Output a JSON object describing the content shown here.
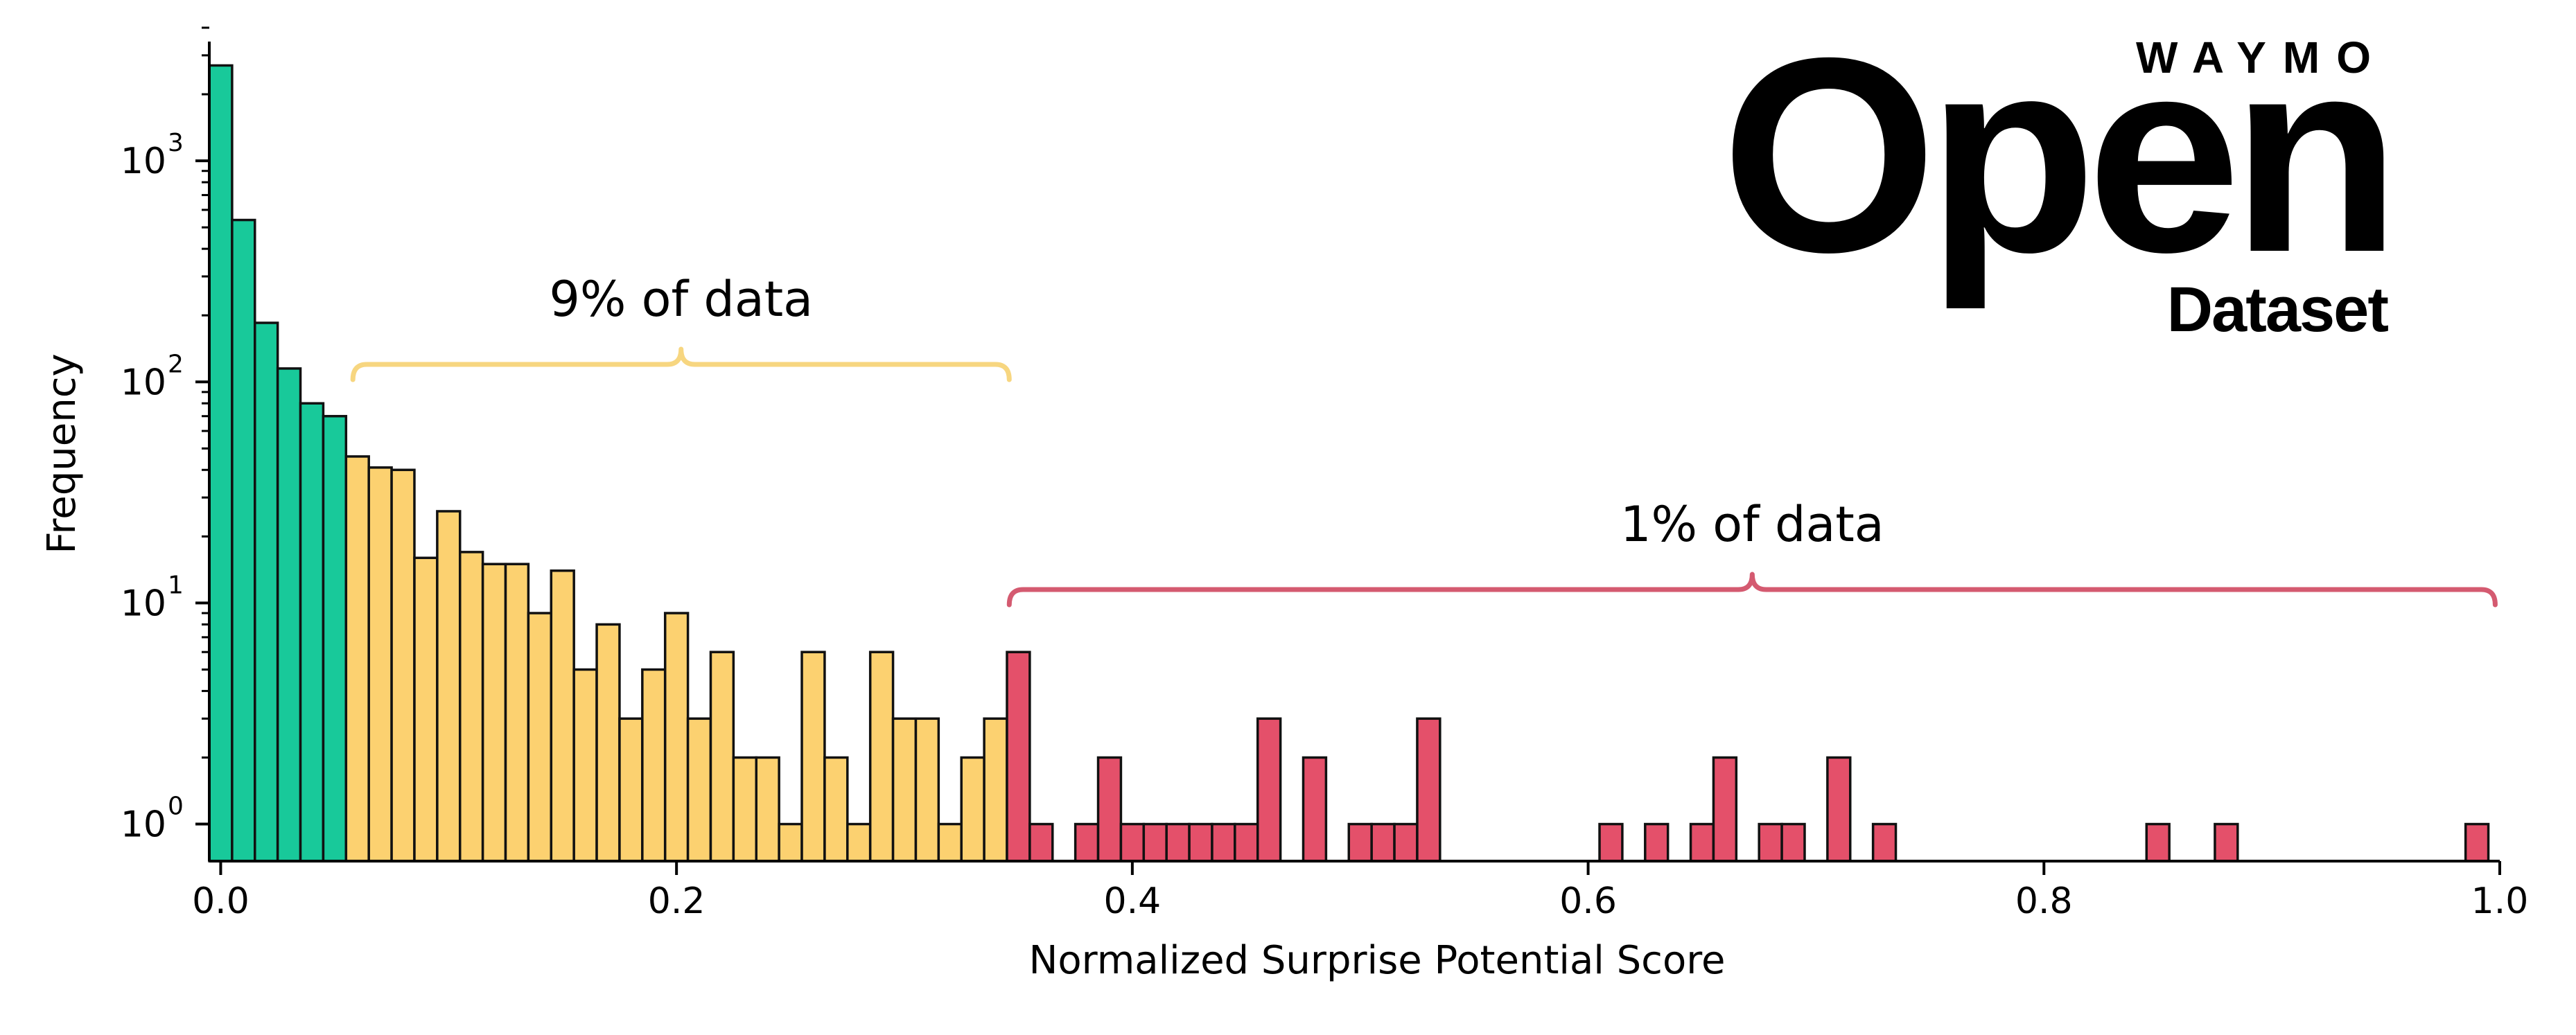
{
  "logo": {
    "wordmark": "WAYMO",
    "main": "Open",
    "sub": "Dataset"
  },
  "colors": {
    "green": "#18c99a",
    "yellow": "#fcd170",
    "red": "#e4506a",
    "bracket_yellow": "#f7d680",
    "bracket_red": "#d45a70",
    "edge": "#111111"
  },
  "annotations": [
    {
      "text": "9% of data",
      "color_key": "bracket_yellow",
      "x_start": 0.058,
      "x_end": 0.346,
      "y": 120
    },
    {
      "text": "1% of data",
      "color_key": "bracket_red",
      "x_start": 0.346,
      "x_end": 0.998,
      "y": 11.5
    }
  ],
  "chart_data": {
    "type": "bar",
    "xlabel": "Normalized Surprise Potential Score",
    "ylabel": "Frequency",
    "xlim": [
      -0.005,
      1.0
    ],
    "ylim": [
      0.68,
      4000
    ],
    "yscale": "log",
    "bin_width": 0.01,
    "xticks": [
      0.0,
      0.2,
      0.4,
      0.6,
      0.8,
      1.0
    ],
    "xtick_labels": [
      "0.0",
      "0.2",
      "0.4",
      "0.6",
      "0.8",
      "1.0"
    ],
    "yticks": [
      {
        "value": 1,
        "base": "10",
        "exp": "0"
      },
      {
        "value": 10,
        "base": "10",
        "exp": "1"
      },
      {
        "value": 100,
        "base": "10",
        "exp": "2"
      },
      {
        "value": 1000,
        "base": "10",
        "exp": "3"
      }
    ],
    "series": [
      {
        "color_key": "green",
        "bins": [
          [
            -0.005,
            2700
          ],
          [
            0.005,
            540
          ],
          [
            0.015,
            185
          ],
          [
            0.025,
            115
          ],
          [
            0.035,
            80
          ],
          [
            0.045,
            70
          ]
        ]
      },
      {
        "color_key": "yellow",
        "bins": [
          [
            0.055,
            46
          ],
          [
            0.065,
            41
          ],
          [
            0.075,
            40
          ],
          [
            0.085,
            16
          ],
          [
            0.095,
            26
          ],
          [
            0.105,
            17
          ],
          [
            0.115,
            15
          ],
          [
            0.125,
            15
          ],
          [
            0.135,
            9
          ],
          [
            0.145,
            14
          ],
          [
            0.155,
            5
          ],
          [
            0.165,
            8
          ],
          [
            0.175,
            3
          ],
          [
            0.185,
            5
          ],
          [
            0.195,
            9
          ],
          [
            0.205,
            3
          ],
          [
            0.215,
            6
          ],
          [
            0.225,
            2
          ],
          [
            0.235,
            2
          ],
          [
            0.245,
            1
          ],
          [
            0.255,
            6
          ],
          [
            0.265,
            2
          ],
          [
            0.275,
            1
          ],
          [
            0.285,
            6
          ],
          [
            0.295,
            3
          ],
          [
            0.305,
            3
          ],
          [
            0.315,
            1
          ],
          [
            0.325,
            2
          ],
          [
            0.335,
            3
          ]
        ]
      },
      {
        "color_key": "red",
        "bins": [
          [
            0.345,
            6
          ],
          [
            0.355,
            1
          ],
          [
            0.375,
            1
          ],
          [
            0.385,
            2
          ],
          [
            0.395,
            1
          ],
          [
            0.405,
            1
          ],
          [
            0.415,
            1
          ],
          [
            0.425,
            1
          ],
          [
            0.435,
            1
          ],
          [
            0.445,
            1
          ],
          [
            0.455,
            3
          ],
          [
            0.475,
            2
          ],
          [
            0.495,
            1
          ],
          [
            0.505,
            1
          ],
          [
            0.515,
            1
          ],
          [
            0.525,
            3
          ],
          [
            0.605,
            1
          ],
          [
            0.625,
            1
          ],
          [
            0.645,
            1
          ],
          [
            0.655,
            2
          ],
          [
            0.675,
            1
          ],
          [
            0.685,
            1
          ],
          [
            0.705,
            2
          ],
          [
            0.725,
            1
          ],
          [
            0.845,
            1
          ],
          [
            0.875,
            1
          ],
          [
            0.985,
            1
          ]
        ]
      }
    ]
  }
}
